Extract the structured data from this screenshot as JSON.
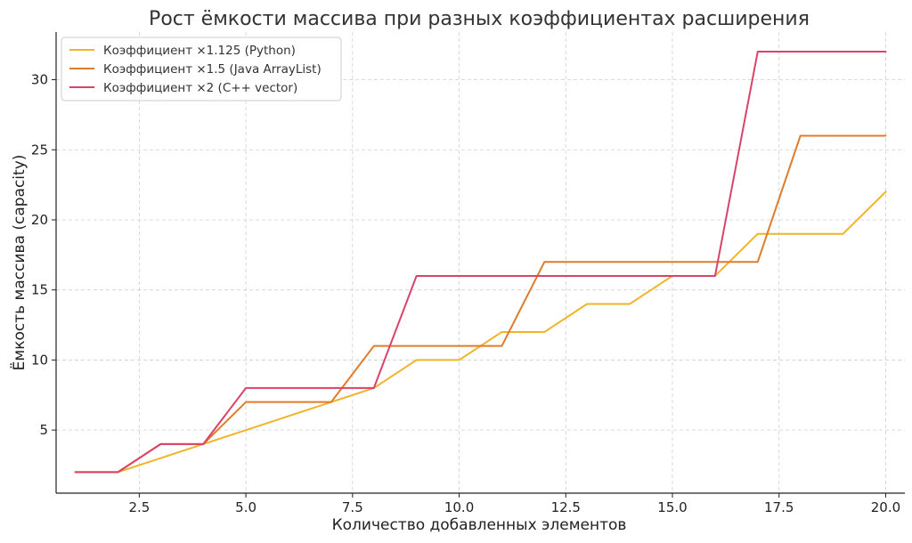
{
  "chart_data": {
    "type": "line",
    "title": "Рост ёмкости массива при разных коэффициентах расширения",
    "xlabel": "Количество добавленных элементов",
    "ylabel": "Ёмкость массива (capacity)",
    "xlim": [
      0.55,
      20.45
    ],
    "ylim": [
      0.5,
      33.4
    ],
    "xticks": [
      2.5,
      5.0,
      7.5,
      10.0,
      12.5,
      15.0,
      17.5,
      20.0
    ],
    "xtick_labels": [
      "2.5",
      "5.0",
      "7.5",
      "10.0",
      "12.5",
      "15.0",
      "17.5",
      "20.0"
    ],
    "yticks": [
      5,
      10,
      15,
      20,
      25,
      30
    ],
    "ytick_labels": [
      "5",
      "10",
      "15",
      "20",
      "25",
      "30"
    ],
    "grid": true,
    "legend_position": "top-left",
    "x": [
      1,
      2,
      3,
      4,
      5,
      6,
      7,
      8,
      9,
      10,
      11,
      12,
      13,
      14,
      15,
      16,
      17,
      18,
      19,
      20
    ],
    "series": [
      {
        "name": "Коэффициент ×1.125 (Python)",
        "color": "#f0b429",
        "values": [
          2,
          2,
          3,
          4,
          5,
          6,
          7,
          8,
          10,
          10,
          12,
          12,
          14,
          14,
          16,
          16,
          19,
          19,
          19,
          22
        ]
      },
      {
        "name": "Коэффициент ×1.5 (Java ArrayList)",
        "color": "#e07b2c",
        "values": [
          2,
          2,
          4,
          4,
          7,
          7,
          7,
          11,
          11,
          11,
          11,
          17,
          17,
          17,
          17,
          17,
          17,
          26,
          26,
          26
        ]
      },
      {
        "name": "Коэффициент ×2 (C++ vector)",
        "color": "#d9436a",
        "values": [
          2,
          2,
          4,
          4,
          8,
          8,
          8,
          8,
          16,
          16,
          16,
          16,
          16,
          16,
          16,
          16,
          32,
          32,
          32,
          32
        ]
      }
    ]
  }
}
